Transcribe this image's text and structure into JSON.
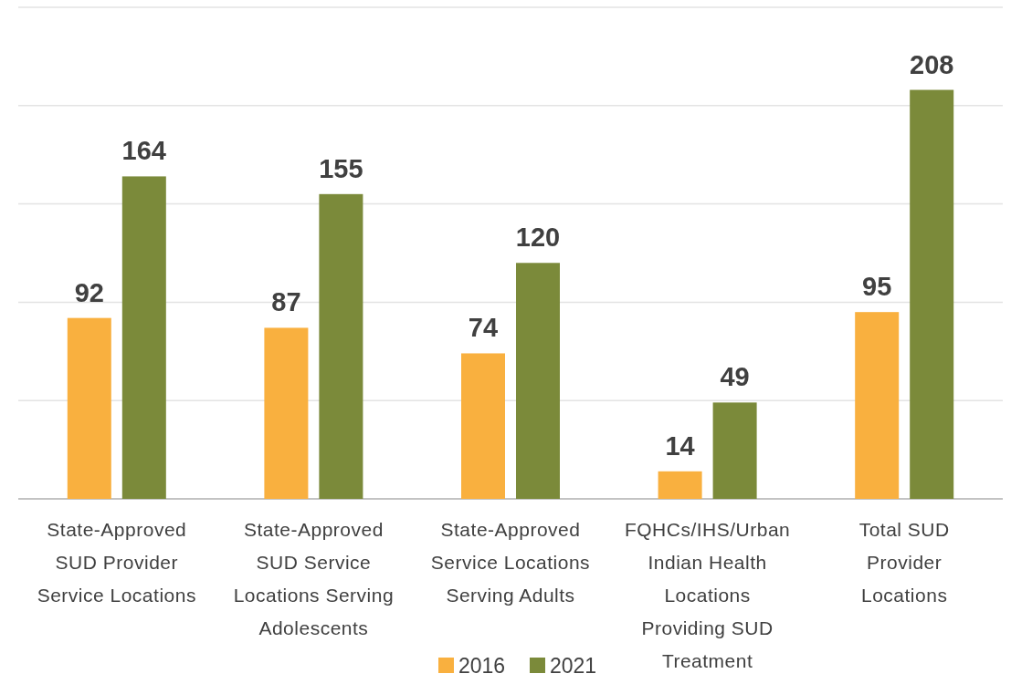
{
  "chart_data": {
    "type": "bar",
    "categories": [
      "State-Approved SUD Provider Service Locations",
      "State-Approved SUD Service Locations Serving Adolescents",
      "State-Approved Service Locations Serving Adults",
      "FQHCs/IHS/Urban Indian Health Locations Providing SUD Treatment",
      "Total SUD Provider Locations"
    ],
    "series": [
      {
        "name": "2016",
        "color": "#f9b03f",
        "values": [
          92,
          87,
          74,
          14,
          95
        ]
      },
      {
        "name": "2021",
        "color": "#7b8a3a",
        "values": [
          164,
          155,
          120,
          49,
          208
        ]
      }
    ],
    "ylim": [
      0,
      250
    ],
    "yticks": [
      {
        "value": 0,
        "label": null
      },
      {
        "value": 50,
        "label": null
      },
      {
        "value": 100,
        "label": null
      },
      {
        "value": 150,
        "label": null
      },
      {
        "value": 200,
        "label": null
      },
      {
        "value": 250,
        "label": null
      }
    ],
    "tick_labels": "x",
    "grid": true,
    "data_labels": true,
    "legend": "bottom"
  }
}
